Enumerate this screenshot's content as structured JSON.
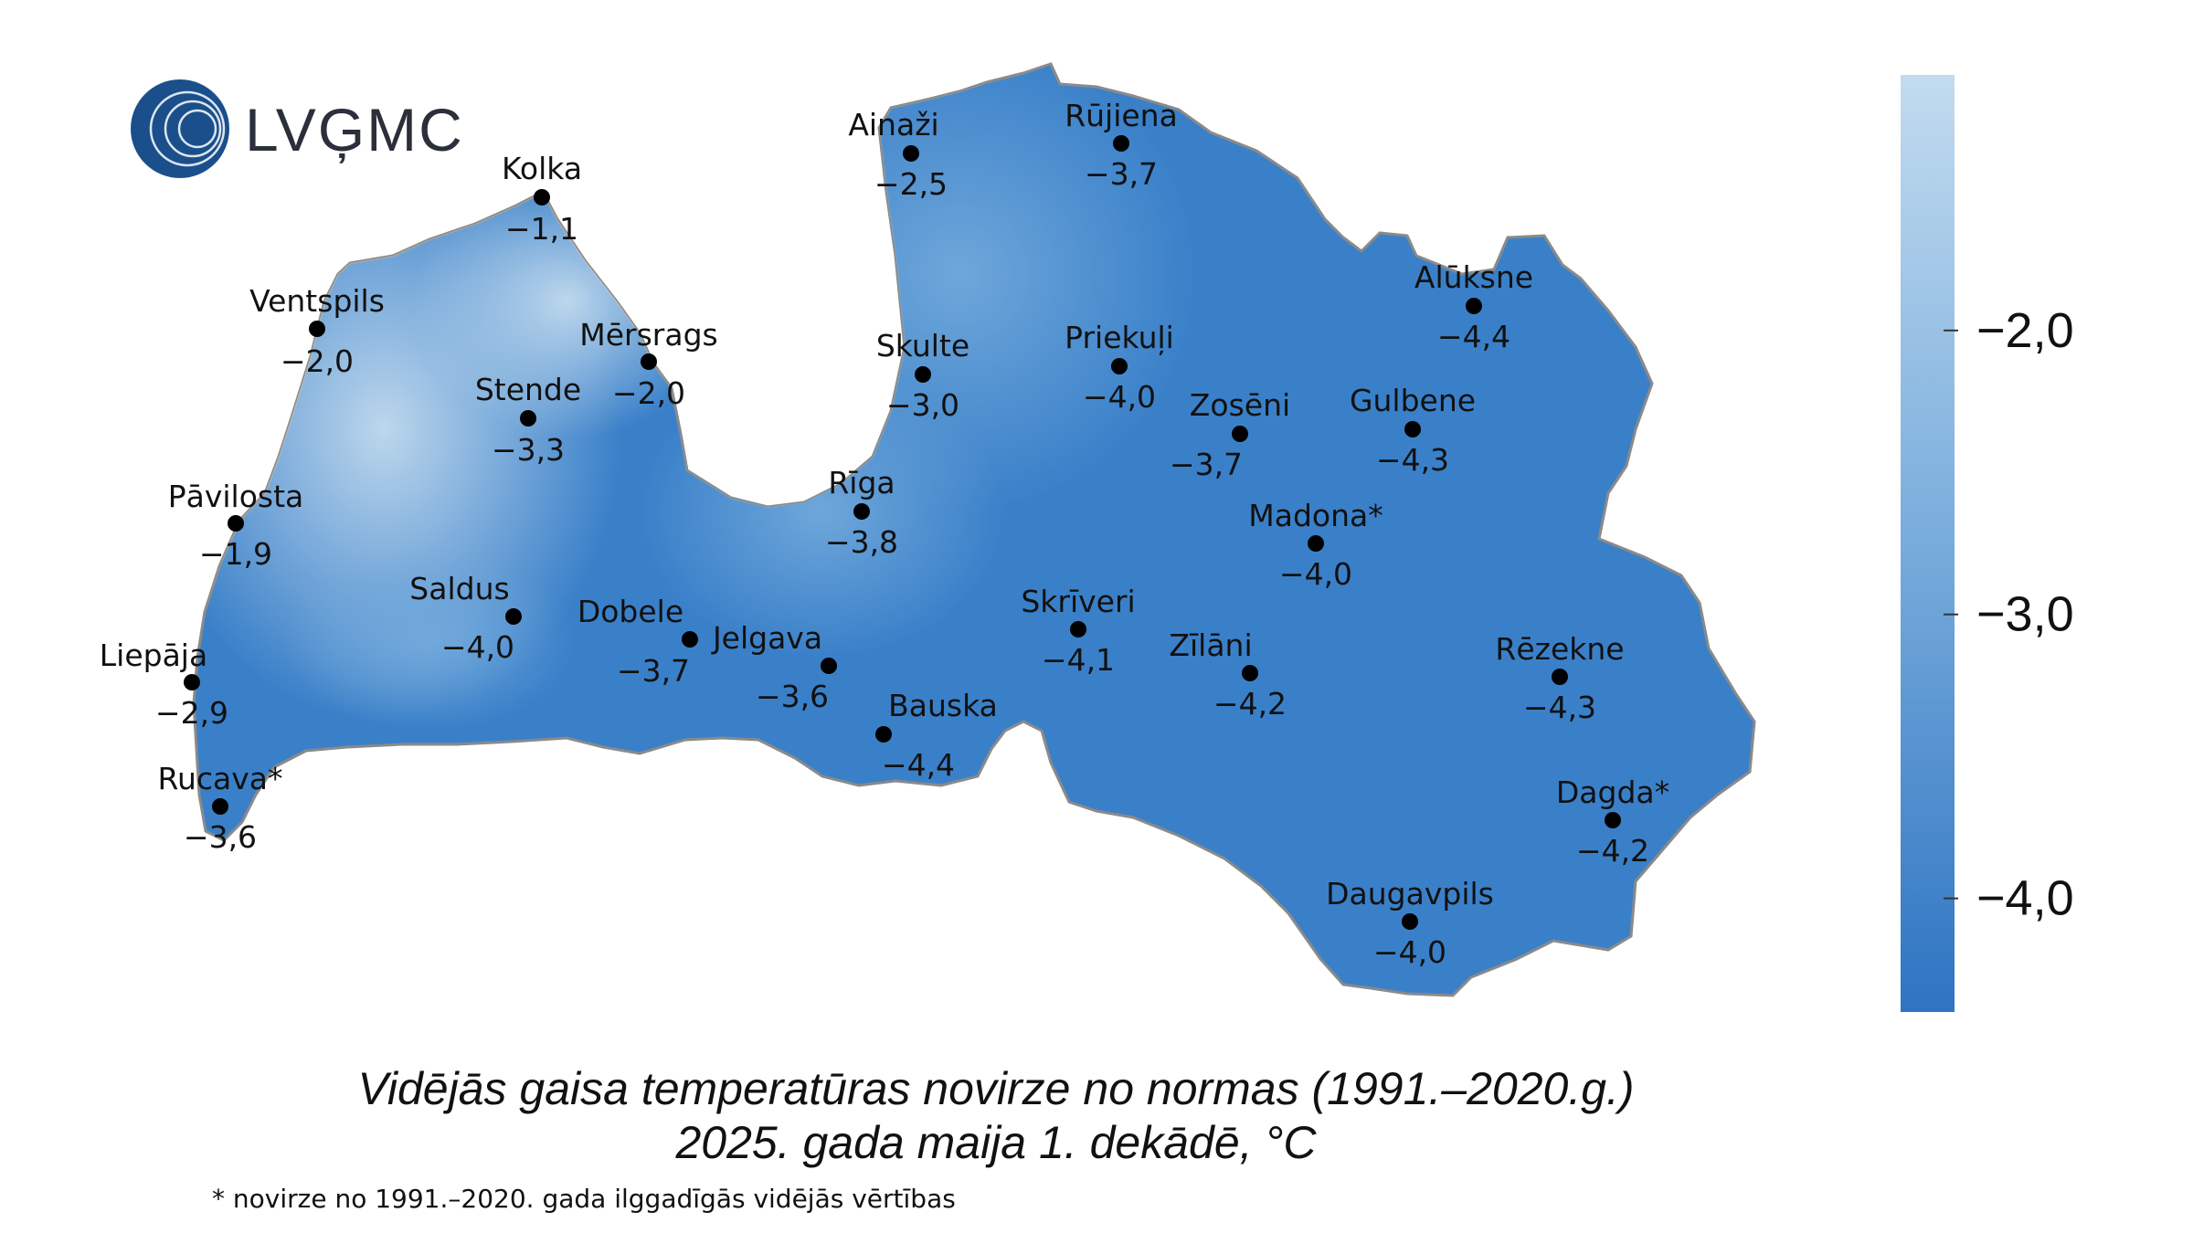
{
  "brand": {
    "name": "LVĢMC",
    "color": "#1a4f8b"
  },
  "title": {
    "line1": "Vidējās gaisa temperatūras novirze no normas (1991.–2020.g.)",
    "line2": "2025. gada maija 1. dekādē, °C"
  },
  "footnote": "* novirze no 1991.–2020. gada ilggadīgās vidējās vērtības",
  "legend": {
    "min": -4.4,
    "max": -1.1,
    "color_low": "#2e74c2",
    "color_high": "#c2dbef",
    "ticks": [
      {
        "value": -2.0,
        "label": "−2,0"
      },
      {
        "value": -3.0,
        "label": "−3,0"
      },
      {
        "value": -4.0,
        "label": "−4,0"
      }
    ]
  },
  "stations": [
    {
      "name": "Kolka",
      "value": "−1,1",
      "anomaly": -1.1
    },
    {
      "name": "Ventspils",
      "value": "−2,0",
      "anomaly": -2.0
    },
    {
      "name": "Mērsrags",
      "value": "−2,0",
      "anomaly": -2.0
    },
    {
      "name": "Stende",
      "value": "−3,3",
      "anomaly": -3.3
    },
    {
      "name": "Pāvilosta",
      "value": "−1,9",
      "anomaly": -1.9
    },
    {
      "name": "Liepāja",
      "value": "−2,9",
      "anomaly": -2.9
    },
    {
      "name": "Rucava*",
      "value": "−3,6",
      "anomaly": -3.6
    },
    {
      "name": "Saldus",
      "value": "−4,0",
      "anomaly": -4.0
    },
    {
      "name": "Dobele",
      "value": "−3,7",
      "anomaly": -3.7
    },
    {
      "name": "Jelgava",
      "value": "−3,6",
      "anomaly": -3.6
    },
    {
      "name": "Bauska",
      "value": "−4,4",
      "anomaly": -4.4
    },
    {
      "name": "Rīga",
      "value": "−3,8",
      "anomaly": -3.8
    },
    {
      "name": "Skulte",
      "value": "−3,0",
      "anomaly": -3.0
    },
    {
      "name": "Ainaži",
      "value": "−2,5",
      "anomaly": -2.5
    },
    {
      "name": "Rūjiena",
      "value": "−3,7",
      "anomaly": -3.7
    },
    {
      "name": "Priekuļi",
      "value": "−4,0",
      "anomaly": -4.0
    },
    {
      "name": "Zosēni",
      "value": "−3,7",
      "anomaly": -3.7
    },
    {
      "name": "Alūksne",
      "value": "−4,4",
      "anomaly": -4.4
    },
    {
      "name": "Gulbene",
      "value": "−4,3",
      "anomaly": -4.3
    },
    {
      "name": "Madona*",
      "value": "−4,0",
      "anomaly": -4.0
    },
    {
      "name": "Skrīveri",
      "value": "−4,1",
      "anomaly": -4.1
    },
    {
      "name": "Zīlāni",
      "value": "−4,2",
      "anomaly": -4.2
    },
    {
      "name": "Rēzekne",
      "value": "−4,3",
      "anomaly": -4.3
    },
    {
      "name": "Dagda*",
      "value": "−4,2",
      "anomaly": -4.2
    },
    {
      "name": "Daugavpils",
      "value": "−4,0",
      "anomaly": -4.0
    }
  ]
}
